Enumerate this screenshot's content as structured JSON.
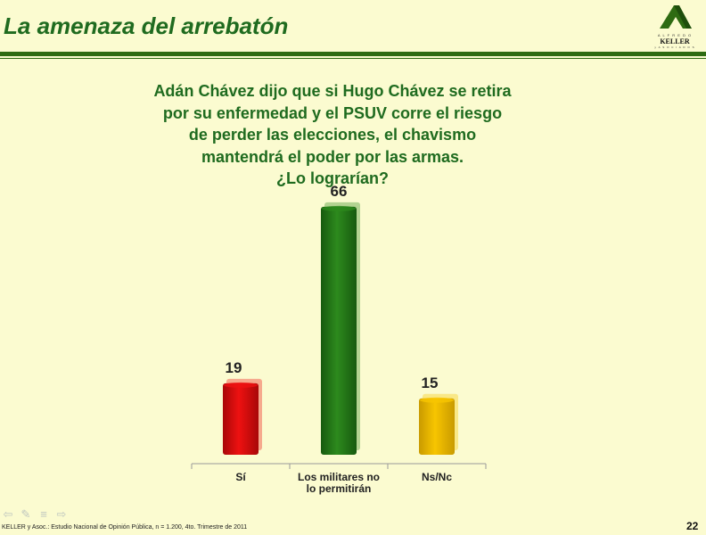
{
  "header": {
    "title": "La amenaza del arrebatón"
  },
  "logo": {
    "top_text": "A L F R E D O",
    "name": "KELLER",
    "sub_text": "y  A S O C I A D O S"
  },
  "question": {
    "lines": [
      "Adán Chávez dijo que si Hugo Chávez se retira",
      "por su enfermedad y el PSUV corre el riesgo",
      "de perder las elecciones, el chavismo",
      "mantendrá el poder por las armas.",
      "¿Lo lograrían?"
    ]
  },
  "colors": {
    "title": "#1f6b1f",
    "rule": "#2e6b12",
    "background": "#fbfbd0",
    "bar_si": "#ee1111",
    "bar_militares": "#2d8a1d",
    "bar_nsnc": "#f7c500"
  },
  "chart_data": {
    "type": "bar",
    "title": "",
    "xlabel": "",
    "ylabel": "",
    "ylim": [
      0,
      70
    ],
    "grid": false,
    "legend": "none",
    "categories": [
      "Sí",
      "Los militares no lo permitirán",
      "Ns/Nc"
    ],
    "category_label_lines": [
      [
        "Sí"
      ],
      [
        "Los militares no",
        "lo permitirán"
      ],
      [
        "Ns/Nc"
      ]
    ],
    "values": [
      19,
      66,
      15
    ],
    "data_labels": [
      "19",
      "66",
      "15"
    ]
  },
  "footer": {
    "note": "KELLER y Asoc.: Estudio Nacional de Opinión Pública, n = 1.200, 4to. Trimestre de 2011",
    "page_number": "22"
  },
  "nav": {
    "icons": [
      "back-arrow-icon",
      "pencil-icon",
      "menu-icon",
      "forward-arrow-icon"
    ]
  }
}
